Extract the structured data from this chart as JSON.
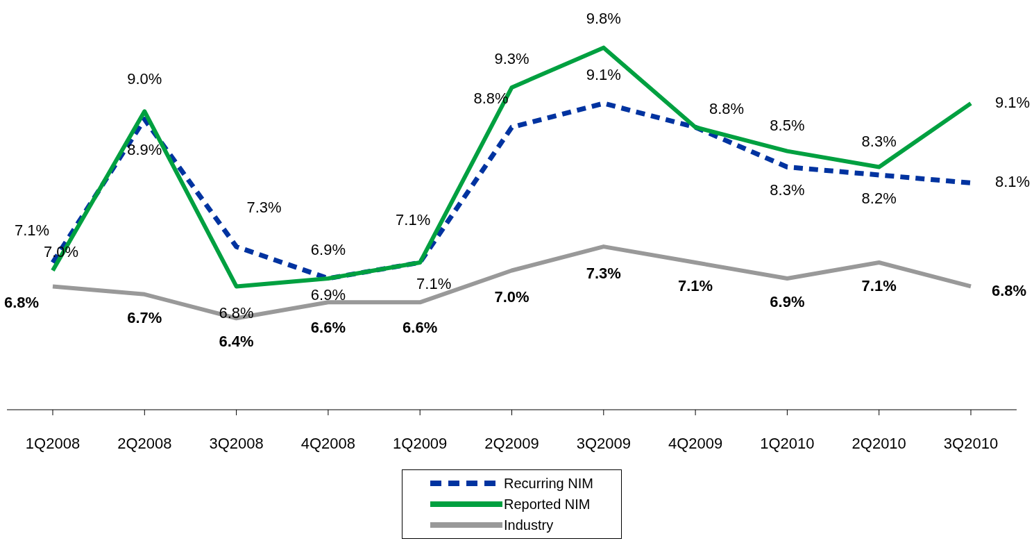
{
  "chart_data": {
    "type": "line",
    "categories": [
      "1Q2008",
      "2Q2008",
      "3Q2008",
      "4Q2008",
      "1Q2009",
      "2Q2009",
      "3Q2009",
      "4Q2009",
      "1Q2010",
      "2Q2010",
      "3Q2010"
    ],
    "series": [
      {
        "name": "Recurring NIM",
        "color": "#0033a0",
        "line_style": "dashed",
        "values": [
          7.1,
          8.9,
          7.3,
          6.9,
          7.1,
          8.8,
          9.1,
          8.8,
          8.3,
          8.2,
          8.1
        ],
        "value_labels": [
          "7.1%",
          "8.9%",
          "7.3%",
          "6.9%",
          "7.1%",
          "8.8%",
          "9.1%",
          null,
          "8.3%",
          "8.2%",
          "8.1%"
        ]
      },
      {
        "name": "Reported NIM",
        "color": "#00a040",
        "line_style": "solid",
        "values": [
          7.0,
          9.0,
          6.8,
          6.9,
          7.1,
          9.3,
          9.8,
          8.8,
          8.5,
          8.3,
          9.1
        ],
        "value_labels": [
          "7.0%",
          "9.0%",
          "6.8%",
          "6.9%",
          "7.1%",
          "9.3%",
          "9.8%",
          "8.8%",
          "8.5%",
          "8.3%",
          "9.1%"
        ]
      },
      {
        "name": "Industry",
        "color": "#999999",
        "line_style": "solid",
        "values": [
          6.8,
          6.7,
          6.4,
          6.6,
          6.6,
          7.0,
          7.3,
          7.1,
          6.9,
          7.1,
          6.8
        ],
        "value_labels": [
          "6.8%",
          "6.7%",
          "6.4%",
          "6.6%",
          "6.6%",
          "7.0%",
          "7.3%",
          "7.1%",
          "6.9%",
          "7.1%",
          "6.8%"
        ]
      }
    ],
    "tick_labels": "x",
    "grid": false,
    "legend": "bottom",
    "marker": "none"
  }
}
